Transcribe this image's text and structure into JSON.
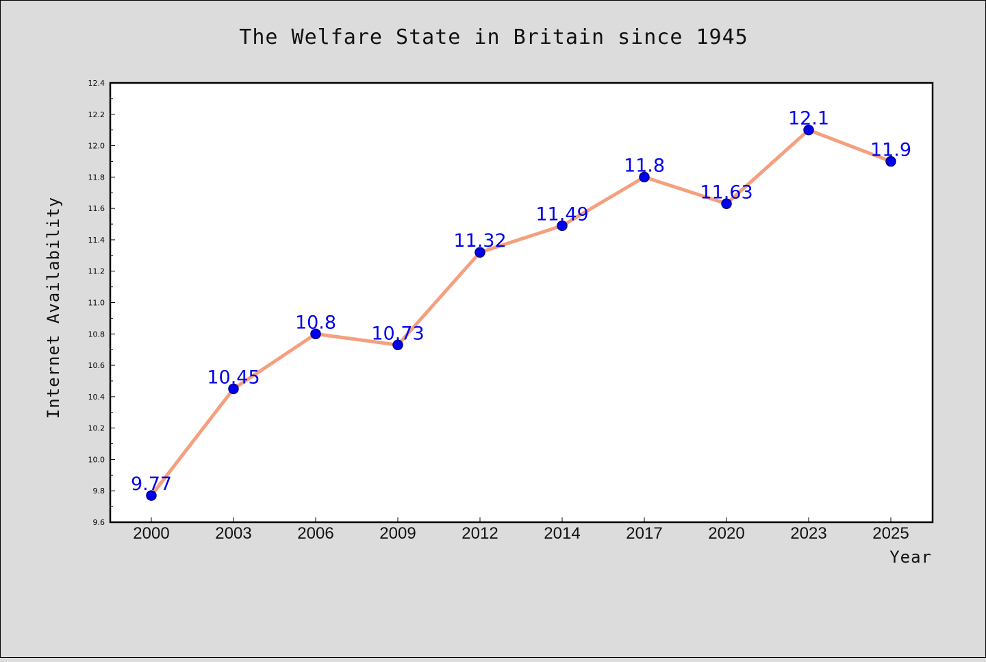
{
  "chart_data": {
    "type": "line",
    "title": "The Welfare State in Britain since 1945",
    "xlabel": "Year",
    "ylabel": "Internet Availability",
    "categories": [
      "2000",
      "2003",
      "2006",
      "2009",
      "2012",
      "2014",
      "2017",
      "2020",
      "2023",
      "2025"
    ],
    "values": [
      9.77,
      10.45,
      10.8,
      10.73,
      11.32,
      11.49,
      11.8,
      11.63,
      12.1,
      11.9
    ],
    "data_labels": [
      "9.77",
      "10.45",
      "10.8",
      "10.73",
      "11.32",
      "11.49",
      "11.8",
      "11.63",
      "12.1",
      "11.9"
    ],
    "ylim": [
      9.6,
      12.4
    ],
    "yticks": [
      "9.6",
      "9.8",
      "10.0",
      "10.2",
      "10.4",
      "10.6",
      "10.8",
      "11.0",
      "11.2",
      "11.4",
      "11.6",
      "11.8",
      "12.0",
      "12.2",
      "12.4"
    ],
    "grid": false,
    "legend": "none",
    "colors": {
      "line": "#f4a07e",
      "marker": "#0000ee",
      "marker_edge": "#000080",
      "data_label": "#0000ee",
      "plot_background": "#ffffff",
      "figure_background": "#dcdcdc"
    }
  }
}
